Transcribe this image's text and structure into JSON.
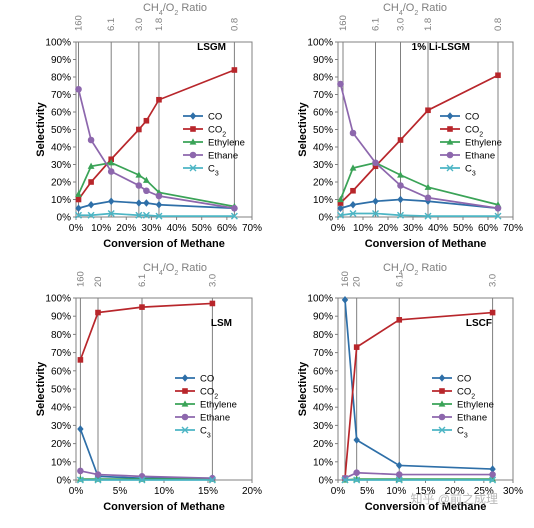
{
  "watermark": "知乎 @前之成理",
  "colors": {
    "CO": "#2e6fa8",
    "CO2": "#b8262b",
    "Ethylene": "#3aa357",
    "Ethane": "#8d67ad",
    "C3": "#4cb5c4",
    "ref_line": "#808080",
    "frame": "#808080"
  },
  "chart_data": [
    {
      "type": "line",
      "panel_label": "LSGM",
      "top_axis_title": "CH4/O2 Ratio",
      "top_ticks": [
        {
          "x": 1,
          "label": "160"
        },
        {
          "x": 14,
          "label": "6.1"
        },
        {
          "x": 25,
          "label": "3.0"
        },
        {
          "x": 33,
          "label": "1.8"
        },
        {
          "x": 63,
          "label": "0.8"
        }
      ],
      "xlabel": "Conversion of Methane",
      "ylabel": "Selectivity",
      "xlim": [
        0,
        70
      ],
      "ylim": [
        0,
        100
      ],
      "x_ticks": [
        "0%",
        "10%",
        "20%",
        "30%",
        "40%",
        "50%",
        "60%",
        "70%"
      ],
      "y_ticks": [
        "0%",
        "10%",
        "20%",
        "30%",
        "40%",
        "50%",
        "60%",
        "70%",
        "80%",
        "90%",
        "100%"
      ],
      "legend_position": "center-right",
      "legend": [
        "CO",
        "CO2",
        "Ethylene",
        "Ethane",
        "C3"
      ],
      "series": [
        {
          "name": "CO",
          "color": "CO",
          "marker": "diamond",
          "x": [
            1,
            6,
            14,
            25,
            28,
            33,
            63
          ],
          "y": [
            5,
            7,
            9,
            8,
            8,
            7,
            5
          ]
        },
        {
          "name": "CO2",
          "color": "CO2",
          "marker": "square",
          "x": [
            1,
            6,
            14,
            25,
            28,
            33,
            63
          ],
          "y": [
            10,
            20,
            33,
            50,
            55,
            67,
            84
          ]
        },
        {
          "name": "Ethylene",
          "color": "Ethylene",
          "marker": "triangle",
          "x": [
            1,
            6,
            14,
            25,
            28,
            33,
            63
          ],
          "y": [
            13,
            29,
            31,
            24,
            21,
            14,
            6
          ]
        },
        {
          "name": "Ethane",
          "color": "Ethane",
          "marker": "circle",
          "x": [
            1,
            6,
            14,
            25,
            28,
            33,
            63
          ],
          "y": [
            73,
            44,
            26,
            18,
            15,
            12,
            5
          ]
        },
        {
          "name": "C3",
          "color": "C3",
          "marker": "x",
          "x": [
            1,
            6,
            14,
            25,
            28,
            33,
            63
          ],
          "y": [
            1,
            1,
            2,
            1,
            1,
            0.5,
            0.5
          ]
        }
      ]
    },
    {
      "type": "line",
      "panel_label": "1% Li-LSGM",
      "top_axis_title": "CH4/O2 Ratio",
      "top_ticks": [
        {
          "x": 2,
          "label": "160"
        },
        {
          "x": 15,
          "label": "6.1"
        },
        {
          "x": 25,
          "label": "3.0"
        },
        {
          "x": 36,
          "label": "1.8"
        },
        {
          "x": 64,
          "label": "0.8"
        }
      ],
      "xlabel": "Conversion of Methane",
      "ylabel": "Selectivity",
      "xlim": [
        0,
        70
      ],
      "ylim": [
        0,
        100
      ],
      "x_ticks": [
        "0%",
        "10%",
        "20%",
        "30%",
        "40%",
        "50%",
        "60%",
        "70%"
      ],
      "y_ticks": [
        "0%",
        "10%",
        "20%",
        "30%",
        "40%",
        "50%",
        "60%",
        "70%",
        "80%",
        "90%",
        "100%"
      ],
      "legend_position": "center-right",
      "legend": [
        "CO",
        "CO2",
        "Ethylene",
        "Ethane",
        "C3"
      ],
      "series": [
        {
          "name": "CO",
          "color": "CO",
          "marker": "diamond",
          "x": [
            1,
            6,
            15,
            25,
            36,
            64
          ],
          "y": [
            5,
            7,
            9,
            10,
            9,
            5
          ]
        },
        {
          "name": "CO2",
          "color": "CO2",
          "marker": "square",
          "x": [
            1,
            6,
            15,
            25,
            36,
            64
          ],
          "y": [
            8,
            15,
            29,
            44,
            61,
            81
          ]
        },
        {
          "name": "Ethylene",
          "color": "Ethylene",
          "marker": "triangle",
          "x": [
            1,
            6,
            15,
            25,
            36,
            64
          ],
          "y": [
            10,
            28,
            31,
            24,
            17,
            7
          ]
        },
        {
          "name": "Ethane",
          "color": "Ethane",
          "marker": "circle",
          "x": [
            1,
            6,
            15,
            25,
            36,
            64
          ],
          "y": [
            76,
            48,
            31,
            18,
            11,
            5
          ]
        },
        {
          "name": "C3",
          "color": "C3",
          "marker": "x",
          "x": [
            1,
            6,
            15,
            25,
            36,
            64
          ],
          "y": [
            1,
            2,
            2,
            1,
            0.5,
            0.5
          ]
        }
      ]
    },
    {
      "type": "line",
      "panel_label": "LSM",
      "top_axis_title": "CH4/O2 Ratio",
      "top_ticks": [
        {
          "x": 0.5,
          "label": "160"
        },
        {
          "x": 2.5,
          "label": "20"
        },
        {
          "x": 7.5,
          "label": "6.1"
        },
        {
          "x": 15.5,
          "label": "3.0"
        }
      ],
      "xlabel": "Conversion of Methane",
      "ylabel": "Selectivity",
      "xlim": [
        0,
        20
      ],
      "ylim": [
        0,
        100
      ],
      "x_ticks": [
        "0%",
        "5%",
        "10%",
        "15%",
        "20%"
      ],
      "y_ticks": [
        "0%",
        "10%",
        "20%",
        "30%",
        "40%",
        "50%",
        "60%",
        "70%",
        "80%",
        "90%",
        "100%"
      ],
      "legend_position": "bottom-right",
      "legend": [
        "CO",
        "CO2",
        "Ethylene",
        "Ethane",
        "C3"
      ],
      "series": [
        {
          "name": "CO",
          "color": "CO",
          "marker": "diamond",
          "x": [
            0.5,
            2.5,
            7.5,
            15.5
          ],
          "y": [
            28,
            2,
            1,
            1
          ]
        },
        {
          "name": "CO2",
          "color": "CO2",
          "marker": "square",
          "x": [
            0.5,
            2.5,
            7.5,
            15.5
          ],
          "y": [
            66,
            92,
            95,
            97
          ]
        },
        {
          "name": "Ethylene",
          "color": "Ethylene",
          "marker": "triangle",
          "x": [
            0.5,
            2.5,
            7.5,
            15.5
          ],
          "y": [
            0.5,
            0.5,
            0.5,
            0.5
          ]
        },
        {
          "name": "Ethane",
          "color": "Ethane",
          "marker": "circle",
          "x": [
            0.5,
            2.5,
            7.5,
            15.5
          ],
          "y": [
            5,
            3,
            2,
            1
          ]
        },
        {
          "name": "C3",
          "color": "C3",
          "marker": "x",
          "x": [
            0.5,
            2.5,
            7.5,
            15.5
          ],
          "y": [
            0,
            0,
            0,
            0
          ]
        }
      ]
    },
    {
      "type": "line",
      "panel_label": "LSCF",
      "top_axis_title": "CH4/O2 Ratio",
      "top_ticks": [
        {
          "x": 1.2,
          "label": "160"
        },
        {
          "x": 3.2,
          "label": "20"
        },
        {
          "x": 10.5,
          "label": "6.1"
        },
        {
          "x": 26.5,
          "label": "3.0"
        }
      ],
      "xlabel": "Conversion of Methane",
      "ylabel": "Selectivity",
      "xlim": [
        0,
        30
      ],
      "ylim": [
        0,
        100
      ],
      "x_ticks": [
        "0%",
        "5%",
        "10%",
        "15%",
        "20%",
        "25%",
        "30%"
      ],
      "y_ticks": [
        "0%",
        "10%",
        "20%",
        "30%",
        "40%",
        "50%",
        "60%",
        "70%",
        "80%",
        "90%",
        "100%"
      ],
      "legend_position": "bottom-right",
      "legend": [
        "CO",
        "CO2",
        "Ethylene",
        "Ethane",
        "C3"
      ],
      "series": [
        {
          "name": "CO",
          "color": "CO",
          "marker": "diamond",
          "x": [
            1.2,
            3.2,
            10.5,
            26.5
          ],
          "y": [
            99,
            22,
            8,
            6
          ]
        },
        {
          "name": "CO2",
          "color": "CO2",
          "marker": "square",
          "x": [
            1.2,
            3.2,
            10.5,
            26.5
          ],
          "y": [
            1,
            73,
            88,
            92
          ]
        },
        {
          "name": "Ethylene",
          "color": "Ethylene",
          "marker": "triangle",
          "x": [
            1.2,
            3.2,
            10.5,
            26.5
          ],
          "y": [
            0,
            0.5,
            0.5,
            0.5
          ]
        },
        {
          "name": "Ethane",
          "color": "Ethane",
          "marker": "circle",
          "x": [
            1.2,
            3.2,
            10.5,
            26.5
          ],
          "y": [
            1,
            4,
            3,
            3
          ]
        },
        {
          "name": "C3",
          "color": "C3",
          "marker": "x",
          "x": [
            1.2,
            3.2,
            10.5,
            26.5
          ],
          "y": [
            0,
            0,
            0,
            0
          ]
        }
      ]
    }
  ]
}
